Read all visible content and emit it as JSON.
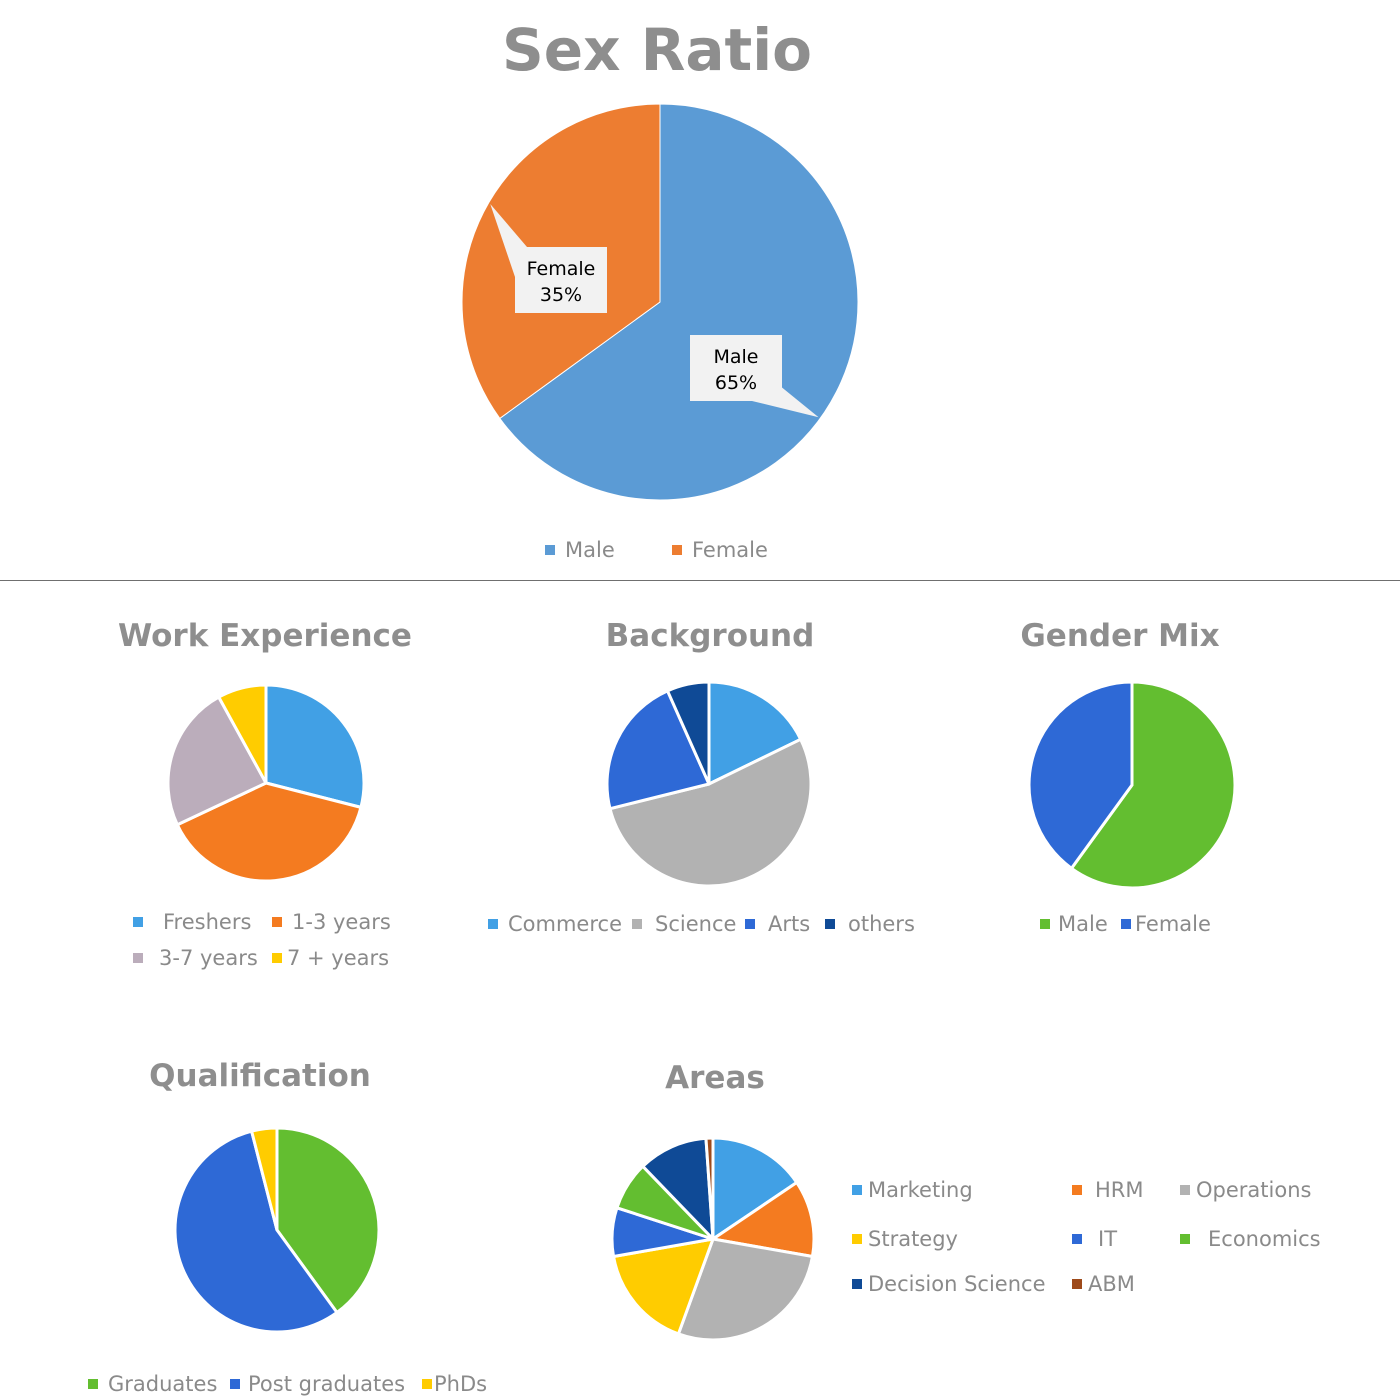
{
  "chart_data": [
    {
      "id": "sex",
      "type": "pie",
      "title": "Sex Ratio",
      "slices": [
        {
          "label": "Male",
          "value": 65,
          "color": "#5B9BD5",
          "data_label": "65%"
        },
        {
          "label": "Female",
          "value": 35,
          "color": "#ED7D31",
          "data_label": "35%"
        }
      ],
      "legend": "bottom"
    },
    {
      "id": "work",
      "type": "pie",
      "title": "Work Experience",
      "slices": [
        {
          "label": "Freshers",
          "value": 29,
          "color": "#41A0E5"
        },
        {
          "label": "1-3 years",
          "value": 39,
          "color": "#F47B20"
        },
        {
          "label": "3-7 years",
          "value": 24,
          "color": "#BBADBB"
        },
        {
          "label": "7 + years",
          "value": 8,
          "color": "#FFCC00"
        }
      ],
      "legend": "bottom"
    },
    {
      "id": "background",
      "type": "pie",
      "title": "Background",
      "slices": [
        {
          "label": "Commerce",
          "value": 16,
          "color": "#41A0E5"
        },
        {
          "label": "Science",
          "value": 48,
          "color": "#B2B2B2"
        },
        {
          "label": "Arts",
          "value": 20,
          "color": "#2E69D6"
        },
        {
          "label": "others",
          "value": 6,
          "color": "#0F4A96"
        }
      ],
      "legend": "bottom"
    },
    {
      "id": "gender",
      "type": "pie",
      "title": "Gender Mix",
      "slices": [
        {
          "label": "Male",
          "value": 60,
          "color": "#63BE30"
        },
        {
          "label": "Female",
          "value": 40,
          "color": "#2E69D6"
        }
      ],
      "legend": "bottom"
    },
    {
      "id": "qual",
      "type": "pie",
      "title": "Qualification",
      "slices": [
        {
          "label": "Graduates",
          "value": 40,
          "color": "#63BE30"
        },
        {
          "label": "Post graduates",
          "value": 56,
          "color": "#2E69D6"
        },
        {
          "label": "PhDs",
          "value": 4,
          "color": "#FFCC00"
        }
      ],
      "legend": "bottom"
    },
    {
      "id": "areas",
      "type": "pie",
      "title": "Areas",
      "slices": [
        {
          "label": "Marketing",
          "value": 14,
          "color": "#41A0E5"
        },
        {
          "label": "HRM",
          "value": 11,
          "color": "#F47B20"
        },
        {
          "label": "Operations",
          "value": 25,
          "color": "#B2B2B2"
        },
        {
          "label": "Strategy",
          "value": 15,
          "color": "#FFCC00"
        },
        {
          "label": "IT",
          "value": 7,
          "color": "#2E69D6"
        },
        {
          "label": "Economics",
          "value": 7,
          "color": "#63BE30"
        },
        {
          "label": "Decision Science",
          "value": 10,
          "color": "#0F4A96"
        },
        {
          "label": "ABM",
          "value": 1,
          "color": "#9E4A1A"
        }
      ],
      "legend": "right"
    }
  ]
}
